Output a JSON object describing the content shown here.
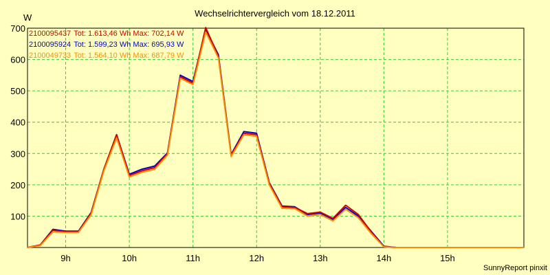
{
  "chart_data": {
    "type": "line",
    "title": "Wechselrichtervergleich vom 18.12.2011",
    "ylabel": "W",
    "xlabel": "",
    "footer": "SunnyReport pinxit",
    "ylim": [
      0,
      700
    ],
    "xlim": [
      8.4,
      16.2
    ],
    "y_ticks": [
      100,
      200,
      300,
      400,
      500,
      600,
      700
    ],
    "x_ticks": [
      {
        "value": 9.0,
        "label": "9h"
      },
      {
        "value": 10.0,
        "label": "10h"
      },
      {
        "value": 11.0,
        "label": "11h"
      },
      {
        "value": 12.0,
        "label": "12h"
      },
      {
        "value": 13.0,
        "label": "13h"
      },
      {
        "value": 14.0,
        "label": "14h"
      },
      {
        "value": 15.0,
        "label": "15h"
      }
    ],
    "grid": true,
    "legend_position": "top-left",
    "x": [
      8.4,
      8.6,
      8.8,
      9.0,
      9.2,
      9.4,
      9.6,
      9.8,
      10.0,
      10.2,
      10.4,
      10.6,
      10.8,
      11.0,
      11.2,
      11.4,
      11.6,
      11.8,
      12.0,
      12.2,
      12.4,
      12.6,
      12.8,
      13.0,
      13.2,
      13.4,
      13.6,
      13.8,
      14.0,
      14.2,
      14.4,
      14.6,
      14.8,
      15.0,
      15.2,
      15.4,
      15.6,
      15.8,
      16.0,
      16.2
    ],
    "series": [
      {
        "name": "2100095437",
        "legend_text": "Tot: 1.613,46 Wh Max: 702,14 W",
        "color": "#d00000",
        "values": [
          0,
          8,
          55,
          50,
          50,
          110,
          250,
          360,
          230,
          245,
          255,
          300,
          545,
          525,
          702,
          610,
          295,
          365,
          360,
          205,
          130,
          128,
          108,
          113,
          93,
          135,
          105,
          50,
          2,
          0,
          0,
          0,
          0,
          0,
          0,
          0,
          0,
          0,
          0,
          0
        ]
      },
      {
        "name": "2100095924",
        "legend_text": "Tot: 1.599,23 Wh Max: 695,93 W",
        "color": "#0000d0",
        "values": [
          0,
          8,
          58,
          52,
          52,
          112,
          250,
          360,
          234,
          250,
          260,
          302,
          550,
          530,
          696,
          615,
          297,
          370,
          365,
          207,
          132,
          130,
          105,
          110,
          90,
          128,
          100,
          52,
          4,
          0,
          0,
          0,
          0,
          0,
          0,
          0,
          0,
          0,
          0,
          0
        ]
      },
      {
        "name": "2100049733",
        "legend_text": "Tot: 1.564,10 Wh Max: 687,79 W",
        "color": "#ff8c00",
        "values": [
          0,
          6,
          50,
          48,
          48,
          105,
          245,
          350,
          225,
          240,
          250,
          295,
          540,
          520,
          688,
          605,
          290,
          360,
          355,
          200,
          125,
          124,
          100,
          105,
          85,
          122,
          95,
          45,
          2,
          0,
          0,
          0,
          0,
          0,
          0,
          0,
          0,
          0,
          0,
          0
        ]
      }
    ]
  }
}
